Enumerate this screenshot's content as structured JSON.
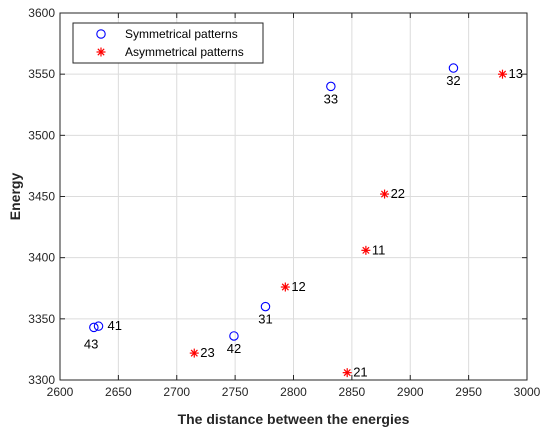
{
  "chart_data": {
    "type": "scatter",
    "xlabel": "The distance between the energies",
    "ylabel": "Energy",
    "xlim": [
      2600,
      3000
    ],
    "ylim": [
      3300,
      3600
    ],
    "x_ticks": [
      2600,
      2650,
      2700,
      2750,
      2800,
      2850,
      2900,
      2950,
      3000
    ],
    "y_ticks": [
      3300,
      3350,
      3400,
      3450,
      3500,
      3550,
      3600
    ],
    "grid": true,
    "legend_position": "top-left",
    "series": [
      {
        "name": "Symmetrical patterns",
        "marker": "circle",
        "color": "#0000ff",
        "points": [
          {
            "x": 2832,
            "y": 3540,
            "label": "33"
          },
          {
            "x": 2937,
            "y": 3555,
            "label": "32"
          },
          {
            "x": 2776,
            "y": 3360,
            "label": "31"
          },
          {
            "x": 2749,
            "y": 3336,
            "label": "42"
          },
          {
            "x": 2633,
            "y": 3344,
            "label": "41"
          },
          {
            "x": 2629,
            "y": 3343,
            "label": "43"
          }
        ]
      },
      {
        "name": "Asymmetrical patterns",
        "marker": "asterisk",
        "color": "#ff0000",
        "points": [
          {
            "x": 2979,
            "y": 3550,
            "label": "13"
          },
          {
            "x": 2878,
            "y": 3452,
            "label": "22"
          },
          {
            "x": 2862,
            "y": 3406,
            "label": "11"
          },
          {
            "x": 2793,
            "y": 3376,
            "label": "12"
          },
          {
            "x": 2715,
            "y": 3322,
            "label": "23"
          },
          {
            "x": 2846,
            "y": 3306,
            "label": "21"
          }
        ]
      }
    ]
  }
}
